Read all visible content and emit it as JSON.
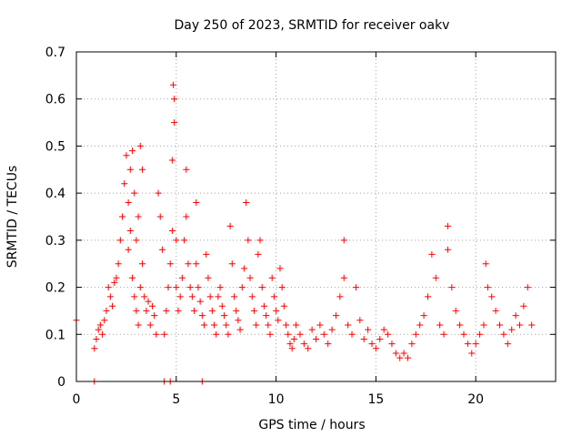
{
  "chart_data": {
    "type": "scatter",
    "title": "Day 250 of 2023, SRMTID for receiver oakv",
    "xlabel": "GPS time / hours",
    "ylabel": "SRMTID / TECUs",
    "xlim": [
      0,
      24
    ],
    "ylim": [
      0,
      0.7
    ],
    "xticks": [
      0,
      5,
      10,
      15,
      20
    ],
    "xtick_labels": [
      "0",
      "5",
      "10",
      "15",
      "20"
    ],
    "yticks": [
      0,
      0.1,
      0.2,
      0.3,
      0.4,
      0.5,
      0.6,
      0.7
    ],
    "ytick_labels": [
      "0",
      "0.1",
      "0.2",
      "0.3",
      "0.4",
      "0.5",
      "0.6",
      "0.7"
    ],
    "grid": true,
    "marker": "plus",
    "color": "#ff0000",
    "series": [
      {
        "name": "SRMTID",
        "x": [
          0.0,
          0.9,
          1.0,
          1.1,
          1.2,
          1.3,
          1.4,
          1.5,
          1.6,
          1.7,
          1.8,
          1.9,
          2.0,
          2.1,
          2.2,
          2.3,
          2.4,
          2.5,
          2.6,
          2.6,
          2.7,
          2.7,
          2.8,
          2.8,
          2.9,
          2.9,
          3.0,
          3.0,
          3.1,
          3.1,
          3.2,
          3.2,
          3.3,
          3.3,
          3.4,
          3.5,
          3.6,
          3.7,
          3.8,
          3.9,
          4.0,
          4.1,
          4.2,
          4.3,
          4.4,
          4.5,
          4.6,
          4.7,
          4.8,
          4.8,
          4.85,
          4.9,
          4.9,
          5.0,
          5.0,
          5.1,
          5.2,
          5.3,
          5.4,
          5.5,
          5.5,
          5.6,
          5.7,
          5.8,
          5.9,
          6.0,
          6.0,
          6.1,
          6.2,
          6.3,
          6.4,
          6.5,
          6.6,
          6.7,
          6.8,
          6.9,
          7.0,
          7.1,
          7.2,
          7.3,
          7.4,
          7.5,
          7.6,
          7.7,
          7.8,
          7.9,
          8.0,
          8.1,
          8.2,
          8.3,
          8.4,
          8.5,
          8.6,
          8.7,
          8.8,
          8.9,
          9.0,
          9.1,
          9.2,
          9.3,
          9.4,
          9.5,
          9.6,
          9.7,
          9.8,
          9.9,
          10.0,
          10.1,
          10.2,
          10.3,
          10.4,
          10.5,
          10.6,
          10.7,
          10.8,
          10.9,
          11.0,
          11.2,
          11.4,
          11.6,
          11.8,
          12.0,
          12.2,
          12.4,
          12.6,
          12.8,
          13.0,
          13.2,
          13.4,
          13.4,
          13.6,
          13.8,
          14.0,
          14.2,
          14.4,
          14.6,
          14.8,
          15.0,
          15.2,
          15.4,
          15.6,
          15.8,
          16.0,
          16.2,
          16.4,
          16.6,
          16.8,
          17.0,
          17.2,
          17.4,
          17.6,
          17.8,
          18.0,
          18.2,
          18.4,
          18.6,
          18.6,
          18.8,
          19.0,
          19.2,
          19.4,
          19.6,
          19.8,
          20.0,
          20.2,
          20.4,
          20.5,
          20.6,
          20.8,
          21.0,
          21.2,
          21.4,
          21.6,
          21.8,
          22.0,
          22.2,
          22.4,
          22.6,
          22.8,
          0.9,
          4.4,
          4.7,
          6.3
        ],
        "y": [
          0.13,
          0.07,
          0.09,
          0.11,
          0.12,
          0.1,
          0.13,
          0.15,
          0.2,
          0.18,
          0.16,
          0.21,
          0.22,
          0.25,
          0.3,
          0.35,
          0.42,
          0.48,
          0.38,
          0.28,
          0.45,
          0.32,
          0.49,
          0.22,
          0.4,
          0.18,
          0.3,
          0.15,
          0.35,
          0.12,
          0.5,
          0.2,
          0.45,
          0.25,
          0.18,
          0.15,
          0.17,
          0.12,
          0.16,
          0.14,
          0.1,
          0.4,
          0.35,
          0.28,
          0.1,
          0.15,
          0.2,
          0.25,
          0.32,
          0.47,
          0.63,
          0.55,
          0.6,
          0.3,
          0.2,
          0.15,
          0.18,
          0.22,
          0.3,
          0.45,
          0.35,
          0.25,
          0.2,
          0.18,
          0.15,
          0.38,
          0.25,
          0.2,
          0.17,
          0.14,
          0.12,
          0.27,
          0.22,
          0.18,
          0.15,
          0.12,
          0.1,
          0.18,
          0.2,
          0.16,
          0.14,
          0.12,
          0.1,
          0.33,
          0.25,
          0.18,
          0.15,
          0.13,
          0.11,
          0.2,
          0.24,
          0.38,
          0.3,
          0.22,
          0.18,
          0.15,
          0.12,
          0.27,
          0.3,
          0.2,
          0.16,
          0.14,
          0.12,
          0.1,
          0.22,
          0.18,
          0.15,
          0.13,
          0.24,
          0.2,
          0.16,
          0.12,
          0.1,
          0.08,
          0.07,
          0.09,
          0.12,
          0.1,
          0.08,
          0.07,
          0.11,
          0.09,
          0.12,
          0.1,
          0.08,
          0.11,
          0.14,
          0.18,
          0.3,
          0.22,
          0.12,
          0.1,
          0.2,
          0.13,
          0.09,
          0.11,
          0.08,
          0.07,
          0.09,
          0.11,
          0.1,
          0.08,
          0.06,
          0.05,
          0.06,
          0.05,
          0.08,
          0.1,
          0.12,
          0.14,
          0.18,
          0.27,
          0.22,
          0.12,
          0.1,
          0.28,
          0.33,
          0.2,
          0.15,
          0.12,
          0.1,
          0.08,
          0.06,
          0.08,
          0.1,
          0.12,
          0.25,
          0.2,
          0.18,
          0.15,
          0.12,
          0.1,
          0.08,
          0.11,
          0.14,
          0.12,
          0.16,
          0.2,
          0.12,
          0.0,
          0.0,
          0.0,
          0.0
        ]
      }
    ]
  }
}
